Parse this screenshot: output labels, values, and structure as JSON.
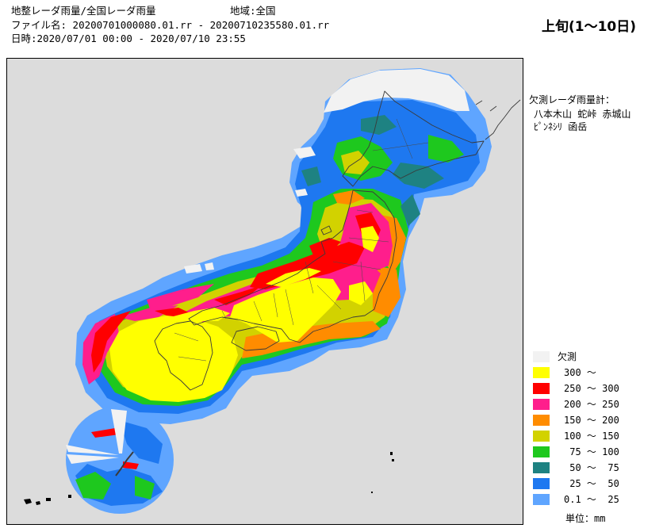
{
  "header": {
    "product": "地整レーダ雨量/全国レーダ雨量",
    "region": "地域:全国",
    "file": "ファイル名: 20200701000080.01.rr - 20200710235580.01.rr",
    "period": "日時:2020/07/01 00:00 - 2020/07/10 23:55"
  },
  "title": "上旬(1～10日)",
  "missing_gauges": {
    "heading": "欠測レーダ雨量計：",
    "line1": "八本木山 蛇峠 赤城山",
    "line2": "ﾋﾟﾝﾈｼﾘ 函岳"
  },
  "legend": {
    "items": [
      {
        "label": "欠測",
        "color": "#f2f2f2"
      },
      {
        "label": "300 ～",
        "color": "#ffff00"
      },
      {
        "label": "250 ～ 300",
        "color": "#ff0000"
      },
      {
        "label": "200 ～ 250",
        "color": "#ff1e8c"
      },
      {
        "label": "150 ～ 200",
        "color": "#ff8c00"
      },
      {
        "label": "100 ～ 150",
        "color": "#d2d200"
      },
      {
        "label": " 75 ～ 100",
        "color": "#1ec81e"
      },
      {
        "label": " 50 ～  75",
        "color": "#1e8282"
      },
      {
        "label": " 25 ～  50",
        "color": "#1e78f0"
      },
      {
        "label": "0.1 ～  25",
        "color": "#5fa5ff"
      }
    ],
    "unit": "単位：mm"
  }
}
